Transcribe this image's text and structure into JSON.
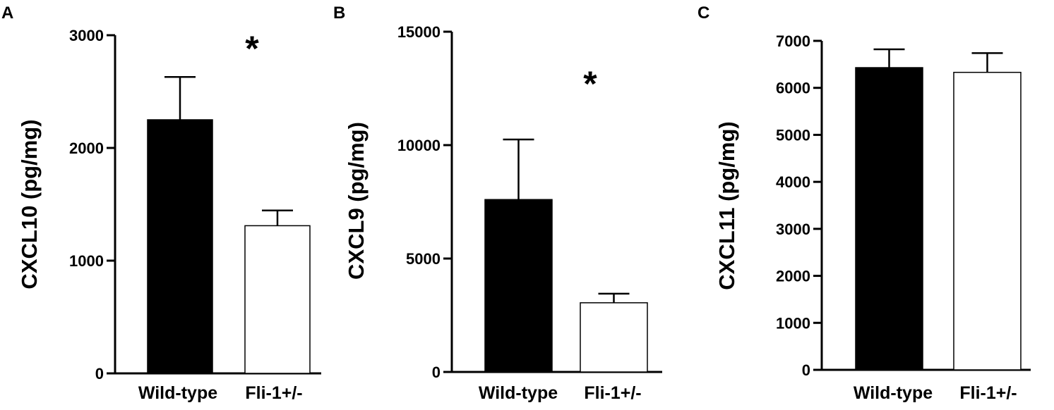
{
  "chart_data": [
    {
      "type": "bar",
      "panel_label": "A",
      "ylabel": "CXCL10 (pg/mg)",
      "categories": [
        "Wild-type",
        "Fli-1+/-"
      ],
      "values": [
        2250,
        1310
      ],
      "errors": [
        380,
        135
      ],
      "bar_colors": [
        "#000000",
        "#ffffff"
      ],
      "ylim": [
        0,
        3000
      ],
      "yticks": [
        0,
        1000,
        2000,
        3000
      ],
      "annotation": "*"
    },
    {
      "type": "bar",
      "panel_label": "B",
      "ylabel": "CXCL9 (pg/mg)",
      "categories": [
        "Wild-type",
        "Fli-1+/-"
      ],
      "values": [
        7600,
        3050
      ],
      "errors": [
        2650,
        400
      ],
      "bar_colors": [
        "#000000",
        "#ffffff"
      ],
      "ylim": [
        0,
        15000
      ],
      "yticks": [
        0,
        5000,
        10000,
        15000
      ],
      "annotation": "*"
    },
    {
      "type": "bar",
      "panel_label": "C",
      "ylabel": "CXCL11 (pg/mg)",
      "categories": [
        "Wild-type",
        "Fli-1+/-"
      ],
      "values": [
        6430,
        6330
      ],
      "errors": [
        390,
        410
      ],
      "bar_colors": [
        "#000000",
        "#ffffff"
      ],
      "ylim": [
        0,
        7000
      ],
      "yticks": [
        0,
        1000,
        2000,
        3000,
        4000,
        5000,
        6000,
        7000
      ],
      "annotation": ""
    }
  ]
}
